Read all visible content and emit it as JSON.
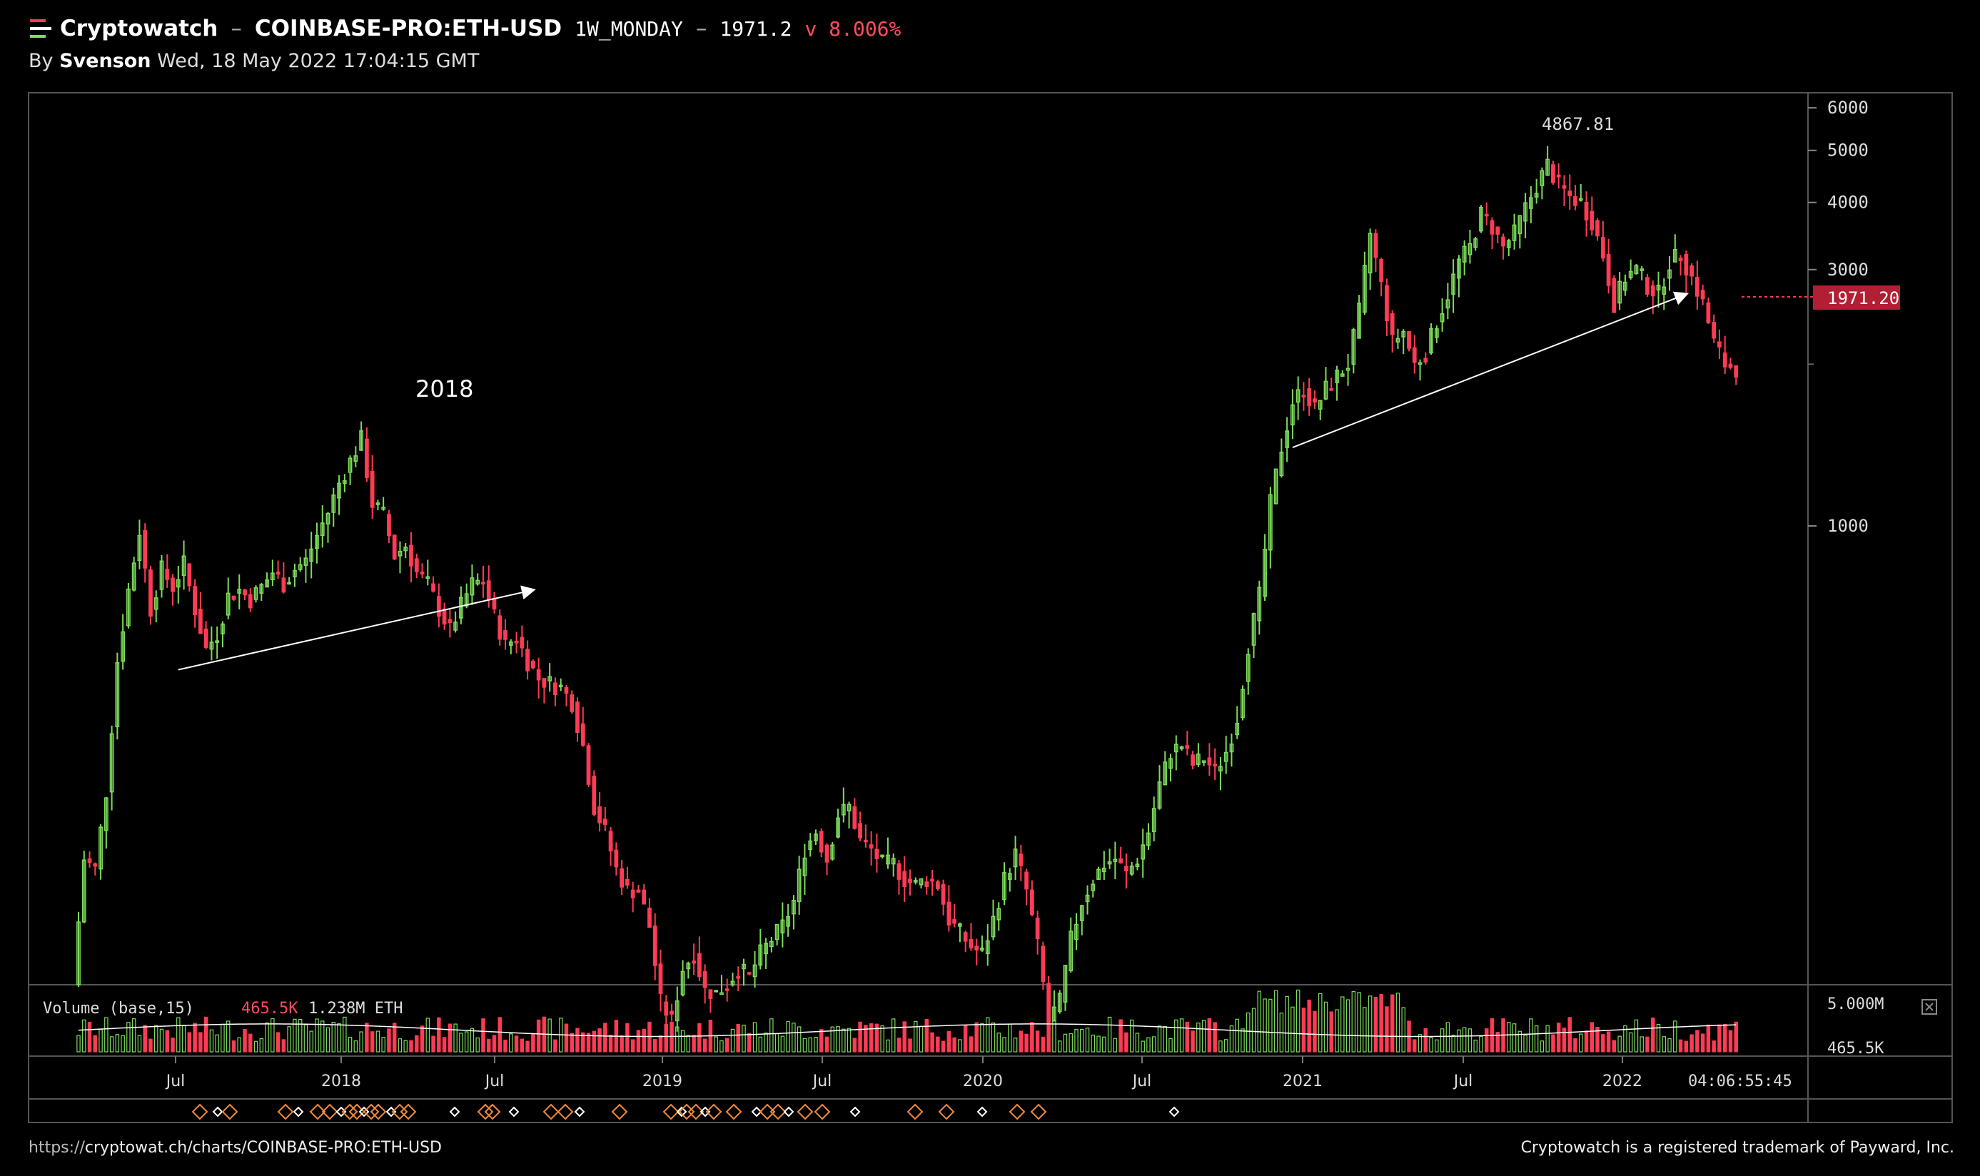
{
  "header": {
    "brand": "Cryptowatch",
    "sep1": "–",
    "pair": "COINBASE-PRO:ETH-USD",
    "interval": "1W_MONDAY",
    "sep2": "–",
    "price": "1971.2",
    "change": "v 8.006%"
  },
  "byline": {
    "by": "By",
    "author": "Svenson",
    "timestamp": "Wed, 18 May 2022 17:04:15 GMT"
  },
  "footer": {
    "url_prefix": "https://",
    "url_host": "cryptowat.ch/charts/COINBASE-PRO:ETH-USD",
    "trademark": "Cryptowatch is a registered trademark of Payward, Inc."
  },
  "colors": {
    "up": "#7ddc5a",
    "down": "#ff3b55",
    "axis": "#555555",
    "label_bg": "#b01f33"
  },
  "chart_data": {
    "type": "candlestick",
    "scale": "log",
    "ylim": [
      140,
      6400
    ],
    "y_ticks": [
      1000,
      3000,
      4000,
      5000,
      6000
    ],
    "y_tick_labels": [
      "1000",
      "3000",
      "4000",
      "5000",
      "6000"
    ],
    "x_ticks": [
      "Jul",
      "2018",
      "Jul",
      "2019",
      "Jul",
      "2020",
      "Jul",
      "2021",
      "Jul",
      "2022"
    ],
    "countdown": "04:06:55:45",
    "annotations": {
      "year_label": "2018",
      "high_label": "4867.81",
      "last_price_label": "1971.20"
    },
    "last_price": 1971.2,
    "high": 4867.81,
    "price_path": [
      [
        0,
        140
      ],
      [
        2,
        240
      ],
      [
        4,
        230
      ],
      [
        6,
        320
      ],
      [
        8,
        560
      ],
      [
        10,
        760
      ],
      [
        12,
        980
      ],
      [
        14,
        700
      ],
      [
        16,
        830
      ],
      [
        18,
        770
      ],
      [
        20,
        850
      ],
      [
        22,
        700
      ],
      [
        24,
        590
      ],
      [
        26,
        630
      ],
      [
        28,
        740
      ],
      [
        30,
        760
      ],
      [
        32,
        730
      ],
      [
        34,
        770
      ],
      [
        36,
        820
      ],
      [
        38,
        780
      ],
      [
        40,
        830
      ],
      [
        42,
        860
      ],
      [
        44,
        960
      ],
      [
        46,
        1060
      ],
      [
        48,
        1200
      ],
      [
        50,
        1320
      ],
      [
        52,
        1450
      ],
      [
        54,
        1100
      ],
      [
        56,
        1050
      ],
      [
        58,
        880
      ],
      [
        60,
        920
      ],
      [
        62,
        820
      ],
      [
        64,
        780
      ],
      [
        66,
        700
      ],
      [
        68,
        640
      ],
      [
        70,
        710
      ],
      [
        72,
        780
      ],
      [
        74,
        790
      ],
      [
        76,
        680
      ],
      [
        78,
        600
      ],
      [
        80,
        620
      ],
      [
        82,
        560
      ],
      [
        84,
        520
      ],
      [
        86,
        510
      ],
      [
        88,
        500
      ],
      [
        90,
        470
      ],
      [
        92,
        390
      ],
      [
        94,
        300
      ],
      [
        96,
        270
      ],
      [
        98,
        230
      ],
      [
        100,
        210
      ],
      [
        102,
        210
      ],
      [
        104,
        180
      ],
      [
        106,
        130
      ],
      [
        108,
        120
      ],
      [
        110,
        150
      ],
      [
        112,
        160
      ],
      [
        114,
        137
      ],
      [
        116,
        135
      ],
      [
        118,
        140
      ],
      [
        120,
        150
      ],
      [
        122,
        145
      ],
      [
        124,
        160
      ],
      [
        126,
        170
      ],
      [
        128,
        180
      ],
      [
        130,
        200
      ],
      [
        132,
        250
      ],
      [
        134,
        270
      ],
      [
        136,
        240
      ],
      [
        138,
        290
      ],
      [
        140,
        300
      ],
      [
        142,
        260
      ],
      [
        144,
        250
      ],
      [
        146,
        235
      ],
      [
        148,
        235
      ],
      [
        150,
        220
      ],
      [
        152,
        215
      ],
      [
        154,
        220
      ],
      [
        156,
        215
      ],
      [
        158,
        185
      ],
      [
        160,
        175
      ],
      [
        162,
        165
      ],
      [
        164,
        160
      ],
      [
        166,
        185
      ],
      [
        168,
        220
      ],
      [
        170,
        245
      ],
      [
        172,
        210
      ],
      [
        174,
        165
      ],
      [
        176,
        120
      ],
      [
        178,
        130
      ],
      [
        180,
        170
      ],
      [
        182,
        200
      ],
      [
        184,
        220
      ],
      [
        186,
        235
      ],
      [
        188,
        240
      ],
      [
        190,
        225
      ],
      [
        192,
        240
      ],
      [
        194,
        270
      ],
      [
        196,
        330
      ],
      [
        198,
        380
      ],
      [
        200,
        390
      ],
      [
        202,
        360
      ],
      [
        204,
        370
      ],
      [
        206,
        350
      ],
      [
        208,
        380
      ],
      [
        210,
        440
      ],
      [
        212,
        600
      ],
      [
        214,
        740
      ],
      [
        216,
        1100
      ],
      [
        218,
        1400
      ],
      [
        220,
        1700
      ],
      [
        222,
        1800
      ],
      [
        224,
        1650
      ],
      [
        226,
        1800
      ],
      [
        228,
        1900
      ],
      [
        230,
        2000
      ],
      [
        232,
        2500
      ],
      [
        234,
        3500
      ],
      [
        236,
        2800
      ],
      [
        238,
        2200
      ],
      [
        240,
        2300
      ],
      [
        242,
        2000
      ],
      [
        244,
        2100
      ],
      [
        246,
        2400
      ],
      [
        248,
        2700
      ],
      [
        250,
        3100
      ],
      [
        252,
        3300
      ],
      [
        254,
        3800
      ],
      [
        256,
        3600
      ],
      [
        258,
        3300
      ],
      [
        260,
        3500
      ],
      [
        262,
        3900
      ],
      [
        264,
        4300
      ],
      [
        266,
        4700
      ],
      [
        268,
        4300
      ],
      [
        270,
        4100
      ],
      [
        272,
        4000
      ],
      [
        274,
        3700
      ],
      [
        276,
        3200
      ],
      [
        278,
        2600
      ],
      [
        280,
        2900
      ],
      [
        282,
        3000
      ],
      [
        284,
        2800
      ],
      [
        286,
        2700
      ],
      [
        288,
        3100
      ],
      [
        290,
        3200
      ],
      [
        292,
        2900
      ],
      [
        294,
        2600
      ],
      [
        296,
        2200
      ],
      [
        298,
        2000
      ],
      [
        300,
        1971
      ]
    ],
    "trendlines": [
      {
        "from": [
          18,
          540
        ],
        "to": [
          82,
          760
        ]
      },
      {
        "from": [
          219,
          1400
        ],
        "to": [
          290,
          2700
        ]
      }
    ],
    "volume": {
      "label": "Volume (base,15)",
      "current": "465.5K",
      "ma": "1.238M ETH",
      "y_tick_labels": [
        "5.000M",
        "465.5K"
      ]
    }
  }
}
